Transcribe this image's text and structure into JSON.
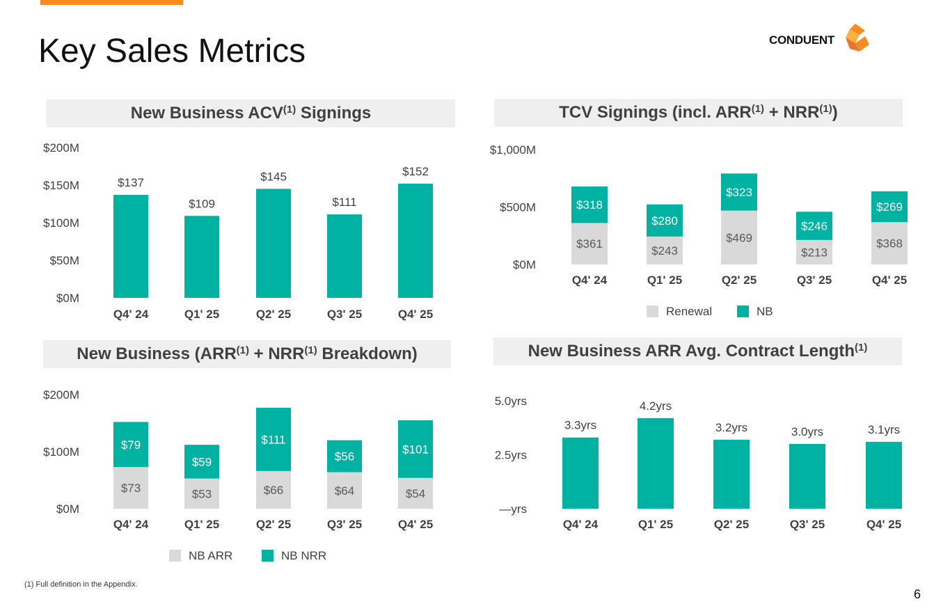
{
  "page": {
    "title": "Key Sales Metrics",
    "logo_text": "CONDUENT",
    "footnote": "(1) Full definition in the Appendix.",
    "page_number": "6",
    "colors": {
      "accent": "#F68B1F",
      "teal": "#00B2A1",
      "gray": "#D9D9D9"
    }
  },
  "titles": {
    "acv": {
      "a": "New Business ACV",
      "sup": "(1)",
      "b": " Signings"
    },
    "tcv": {
      "a": "TCV Signings (incl. ARR",
      "sup1": "(1)",
      "b": " + NRR",
      "sup2": "(1)",
      "c": ")"
    },
    "nb": {
      "a": "New Business (ARR",
      "sup1": "(1)",
      "b": " + NRR",
      "sup2": "(1)",
      "c": " Breakdown)"
    },
    "len": {
      "a": "New Business ARR Avg. Contract Length",
      "sup": "(1)"
    }
  },
  "chart_data": [
    {
      "id": "acv",
      "type": "bar",
      "title": "New Business ACV(1) Signings",
      "categories": [
        "Q4' 24",
        "Q1' 25",
        "Q2' 25",
        "Q3' 25",
        "Q4' 25"
      ],
      "values": [
        137,
        109,
        145,
        111,
        152
      ],
      "labels": [
        "$137",
        "$109",
        "$145",
        "$111",
        "$152"
      ],
      "ylim": [
        0,
        200
      ],
      "yticks": [
        0,
        50,
        100,
        150,
        200
      ],
      "ytick_labels": [
        "$0M",
        "$50M",
        "$100M",
        "$150M",
        "$200M"
      ]
    },
    {
      "id": "tcv",
      "type": "bar",
      "stacked": true,
      "title": "TCV Signings (incl. ARR(1) + NRR(1))",
      "categories": [
        "Q4' 24",
        "Q1' 25",
        "Q2' 25",
        "Q3' 25",
        "Q4' 25"
      ],
      "series": [
        {
          "name": "Renewal",
          "values": [
            361,
            243,
            469,
            213,
            368
          ],
          "labels": [
            "$361",
            "$243",
            "$469",
            "$213",
            "$368"
          ]
        },
        {
          "name": "NB",
          "values": [
            318,
            280,
            323,
            246,
            269
          ],
          "labels": [
            "$318",
            "$280",
            "$323",
            "$246",
            "$269"
          ]
        }
      ],
      "ylim": [
        0,
        1000
      ],
      "yticks": [
        0,
        500,
        1000
      ],
      "ytick_labels": [
        "$0M",
        "$500M",
        "$1,000M"
      ],
      "legend": [
        "Renewal",
        "NB"
      ]
    },
    {
      "id": "nb",
      "type": "bar",
      "stacked": true,
      "title": "New Business (ARR(1) + NRR(1) Breakdown)",
      "categories": [
        "Q4' 24",
        "Q1' 25",
        "Q2' 25",
        "Q3' 25",
        "Q4' 25"
      ],
      "series": [
        {
          "name": "NB ARR",
          "values": [
            73,
            53,
            66,
            64,
            54
          ],
          "labels": [
            "$73",
            "$53",
            "$66",
            "$64",
            "$54"
          ]
        },
        {
          "name": "NB NRR",
          "values": [
            79,
            59,
            111,
            56,
            101
          ],
          "labels": [
            "$79",
            "$59",
            "$111",
            "$56",
            "$101"
          ]
        }
      ],
      "ylim": [
        0,
        200
      ],
      "yticks": [
        0,
        100,
        200
      ],
      "ytick_labels": [
        "$0M",
        "$100M",
        "$200M"
      ],
      "legend": [
        "NB ARR",
        "NB NRR"
      ]
    },
    {
      "id": "len",
      "type": "bar",
      "title": "New Business ARR Avg. Contract Length(1)",
      "categories": [
        "Q4' 24",
        "Q1' 25",
        "Q2' 25",
        "Q3' 25",
        "Q4' 25"
      ],
      "values": [
        3.3,
        4.2,
        3.2,
        3.0,
        3.1
      ],
      "labels": [
        "3.3yrs",
        "4.2yrs",
        "3.2yrs",
        "3.0yrs",
        "3.1yrs"
      ],
      "ylim": [
        0,
        5
      ],
      "yticks": [
        0,
        2.5,
        5
      ],
      "ytick_labels": [
        "—yrs",
        "2.5yrs",
        "5.0yrs"
      ]
    }
  ]
}
